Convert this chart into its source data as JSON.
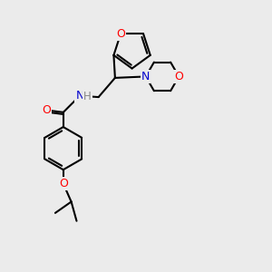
{
  "background_color": "#ebebeb",
  "atom_colors": {
    "O": "#ff0000",
    "N": "#0000cc",
    "H": "#888888",
    "C": "#000000"
  },
  "font_size": 8.5,
  "lw": 1.5
}
